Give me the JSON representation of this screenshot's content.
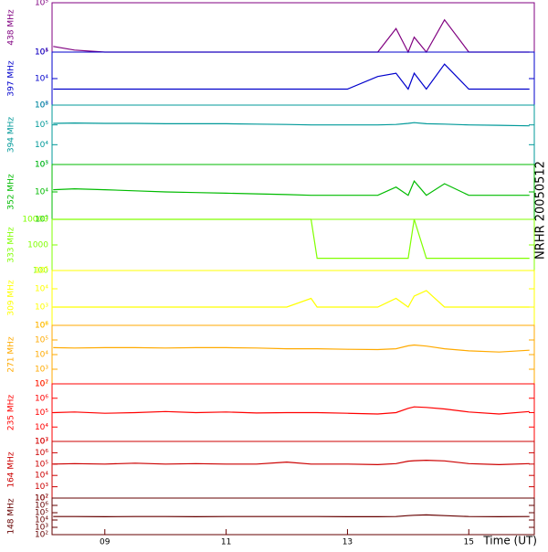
{
  "chart_data": [
    {
      "type": "line",
      "title": "NRHR 20050512",
      "y_label": "438 MHz",
      "color": "#800080",
      "log_y": true,
      "xlim": [
        8.13,
        16.08
      ],
      "x": [
        8.15,
        8.5,
        9,
        9.5,
        10,
        10.5,
        11,
        11.5,
        12,
        12.4,
        12.5,
        13,
        13.5,
        13.8,
        14,
        14.1,
        14.3,
        14.6,
        15,
        15.5,
        16
      ],
      "values": [
        13000,
        11000,
        10000,
        10000,
        10000,
        10000,
        10000,
        10000,
        10000,
        10000,
        10000,
        10000,
        10000,
        30000,
        10000,
        20000,
        10000,
        45000,
        10000,
        10000,
        10000
      ],
      "ylim": [
        10000,
        100000
      ],
      "yticks": [
        {
          "value": 10000,
          "label": "10⁴"
        },
        {
          "value": 100000,
          "label": "10⁵"
        }
      ]
    },
    {
      "type": "line",
      "y_label": "397 MHz",
      "color": "#0000cc",
      "log_y": true,
      "xlim": [
        8.13,
        16.08
      ],
      "x": [
        8.15,
        8.5,
        9,
        9.5,
        10,
        10.5,
        11,
        11.5,
        12,
        12.4,
        12.5,
        13,
        13.5,
        13.8,
        14,
        14.1,
        14.3,
        14.6,
        15,
        15.5,
        16
      ],
      "values": [
        4000,
        4000,
        4000,
        4000,
        4000,
        4000,
        4000,
        4000,
        4000,
        4000,
        4000,
        4000,
        12000,
        16000,
        4000,
        16000,
        4000,
        35000,
        4000,
        4000,
        4000
      ],
      "ylim": [
        1000,
        100000
      ],
      "yticks": [
        {
          "value": 1000,
          "label": "10³"
        },
        {
          "value": 10000,
          "label": "10⁴"
        },
        {
          "value": 100000,
          "label": "10⁵"
        }
      ]
    },
    {
      "type": "line",
      "y_label": "394 MHz",
      "color": "#009999",
      "log_y": true,
      "xlim": [
        8.13,
        16.08
      ],
      "x": [
        8.15,
        8.5,
        9,
        9.5,
        10,
        10.5,
        11,
        11.5,
        12,
        12.4,
        12.5,
        13,
        13.5,
        13.8,
        14,
        14.1,
        14.3,
        14.6,
        15,
        15.5,
        16
      ],
      "values": [
        120000,
        125000,
        120000,
        120000,
        115000,
        115000,
        115000,
        110000,
        105000,
        100000,
        100000,
        100000,
        100000,
        105000,
        120000,
        130000,
        115000,
        110000,
        100000,
        95000,
        90000
      ],
      "ylim": [
        1000,
        1000000
      ],
      "yticks": [
        {
          "value": 1000,
          "label": "10³"
        },
        {
          "value": 10000,
          "label": "10⁴"
        },
        {
          "value": 100000,
          "label": "10⁵"
        },
        {
          "value": 1000000,
          "label": "10⁶"
        }
      ]
    },
    {
      "type": "line",
      "y_label": "352 MHz",
      "color": "#00bb00",
      "log_y": true,
      "xlim": [
        8.13,
        16.08
      ],
      "x": [
        8.15,
        8.5,
        9,
        9.5,
        10,
        10.5,
        11,
        11.5,
        12,
        12.4,
        12.5,
        13,
        13.5,
        13.8,
        14,
        14.1,
        14.3,
        14.6,
        15,
        15.5,
        16
      ],
      "values": [
        12000,
        13000,
        12000,
        11000,
        10000,
        9500,
        9000,
        8500,
        8000,
        7500,
        7500,
        7500,
        7500,
        15000,
        7500,
        25000,
        7500,
        20000,
        7500,
        7500,
        7500
      ],
      "ylim": [
        1000,
        100000
      ],
      "yticks": [
        {
          "value": 1000,
          "label": "10³"
        },
        {
          "value": 10000,
          "label": "10⁴"
        },
        {
          "value": 100000,
          "label": "10⁵"
        }
      ]
    },
    {
      "type": "line",
      "y_label": "333 MHz",
      "color": "#80ff00",
      "log_y": true,
      "xlim": [
        8.13,
        16.08
      ],
      "x": [
        8.15,
        8.5,
        9,
        9.5,
        10,
        10.5,
        11,
        11.5,
        12,
        12.4,
        12.5,
        13,
        13.5,
        13.8,
        14,
        14.1,
        14.3,
        14.6,
        15,
        15.5,
        16
      ],
      "values": [
        10000,
        10000,
        10000,
        10000,
        10000,
        10000,
        10000,
        10000,
        10000,
        10000,
        300,
        300,
        300,
        300,
        300,
        10000,
        300,
        300,
        300,
        300,
        300
      ],
      "ylim": [
        100,
        10000
      ],
      "yticks": [
        100,
        1000,
        10000
      ]
    },
    {
      "type": "line",
      "y_label": "309 MHz",
      "color": "#ffff00",
      "log_y": true,
      "xlim": [
        8.13,
        16.08
      ],
      "x": [
        8.15,
        8.5,
        9,
        9.5,
        10,
        10.5,
        11,
        11.5,
        12,
        12.4,
        12.5,
        13,
        13.5,
        13.8,
        14,
        14.1,
        14.3,
        14.6,
        15,
        15.5,
        16
      ],
      "values": [
        1000,
        1000,
        1000,
        1000,
        1000,
        1000,
        1000,
        1000,
        1000,
        3000,
        1000,
        1000,
        1000,
        3000,
        1000,
        4000,
        8000,
        1000,
        1000,
        1000,
        1000
      ],
      "ylim": [
        100,
        100000
      ],
      "yticks": [
        {
          "value": 100,
          "label": "10²"
        },
        {
          "value": 1000,
          "label": "10³"
        },
        {
          "value": 10000,
          "label": "10⁴"
        },
        {
          "value": 100000,
          "label": "10⁵"
        }
      ]
    },
    {
      "type": "line",
      "y_label": "271 MHz",
      "color": "#ffaa00",
      "log_y": true,
      "xlim": [
        8.13,
        16.08
      ],
      "x": [
        8.15,
        8.5,
        9,
        9.5,
        10,
        10.5,
        11,
        11.5,
        12,
        12.4,
        12.5,
        13,
        13.5,
        13.8,
        14,
        14.1,
        14.3,
        14.6,
        15,
        15.5,
        16
      ],
      "values": [
        30000,
        28000,
        30000,
        30000,
        28000,
        30000,
        30000,
        28000,
        25000,
        25000,
        25000,
        23000,
        22000,
        25000,
        40000,
        45000,
        38000,
        25000,
        18000,
        15000,
        20000
      ],
      "ylim": [
        100,
        1000000
      ],
      "yticks": [
        {
          "value": 100,
          "label": "10²"
        },
        {
          "value": 1000,
          "label": "10³"
        },
        {
          "value": 10000,
          "label": "10⁴"
        },
        {
          "value": 100000,
          "label": "10⁵"
        },
        {
          "value": 1000000,
          "label": "10⁶"
        }
      ]
    },
    {
      "type": "line",
      "y_label": "235 MHz",
      "color": "#ff0000",
      "log_y": true,
      "xlim": [
        8.13,
        16.08
      ],
      "x": [
        8.15,
        8.5,
        9,
        9.5,
        10,
        10.5,
        11,
        11.5,
        12,
        12.4,
        12.5,
        13,
        13.5,
        13.8,
        14,
        14.1,
        14.3,
        14.6,
        15,
        15.5,
        16
      ],
      "values": [
        100000,
        110000,
        90000,
        100000,
        120000,
        100000,
        110000,
        95000,
        100000,
        100000,
        100000,
        90000,
        80000,
        100000,
        200000,
        250000,
        230000,
        180000,
        110000,
        80000,
        120000
      ],
      "ylim": [
        1000,
        10000000
      ],
      "yticks": [
        {
          "value": 1000,
          "label": "10³"
        },
        {
          "value": 10000,
          "label": "10⁴"
        },
        {
          "value": 100000,
          "label": "10⁵"
        },
        {
          "value": 1000000,
          "label": "10⁶"
        },
        {
          "value": 10000000,
          "label": "10⁷"
        }
      ]
    },
    {
      "type": "line",
      "y_label": "164 MHz",
      "color": "#cc0000",
      "log_y": true,
      "xlim": [
        8.13,
        16.08
      ],
      "x": [
        8.15,
        8.5,
        9,
        9.5,
        10,
        10.5,
        11,
        11.5,
        12,
        12.4,
        12.5,
        13,
        13.5,
        13.8,
        14,
        14.1,
        14.3,
        14.6,
        15,
        15.5,
        16
      ],
      "values": [
        100000,
        110000,
        100000,
        120000,
        100000,
        110000,
        100000,
        100000,
        150000,
        100000,
        100000,
        100000,
        90000,
        110000,
        180000,
        200000,
        220000,
        190000,
        110000,
        90000,
        110000
      ],
      "ylim": [
        100,
        10000000
      ],
      "yticks": [
        {
          "value": 100,
          "label": "10²"
        },
        {
          "value": 1000,
          "label": "10³"
        },
        {
          "value": 10000,
          "label": "10⁴"
        },
        {
          "value": 100000,
          "label": "10⁵"
        },
        {
          "value": 1000000,
          "label": "10⁶"
        },
        {
          "value": 10000000,
          "label": "10⁷"
        }
      ]
    },
    {
      "type": "line",
      "y_label": "148 MHz",
      "color": "#660000",
      "log_y": true,
      "xlim": [
        8.13,
        16.08
      ],
      "x": [
        8.15,
        8.5,
        9,
        9.5,
        10,
        10.5,
        11,
        11.5,
        12,
        12.4,
        12.5,
        13,
        13.5,
        13.8,
        14,
        14.1,
        14.3,
        14.6,
        15,
        15.5,
        16
      ],
      "values": [
        30000,
        30000,
        28000,
        30000,
        30000,
        28000,
        30000,
        30000,
        30000,
        30000,
        30000,
        28000,
        28000,
        30000,
        40000,
        45000,
        50000,
        40000,
        30000,
        28000,
        30000
      ],
      "ylim": [
        100,
        10000000
      ],
      "yticks": [
        {
          "value": 100,
          "label": "10²"
        },
        {
          "value": 1000,
          "label": "10³"
        },
        {
          "value": 10000,
          "label": "10⁴"
        },
        {
          "value": 100000,
          "label": "10⁵"
        },
        {
          "value": 1000000,
          "label": "10⁶"
        },
        {
          "value": 10000000,
          "label": "10⁷"
        }
      ],
      "xlabel": "Time (UT)",
      "xticks": [
        {
          "value": 9,
          "label": "09"
        },
        {
          "value": 11,
          "label": "11"
        },
        {
          "value": 13,
          "label": "13"
        },
        {
          "value": 15,
          "label": "15"
        }
      ]
    }
  ]
}
